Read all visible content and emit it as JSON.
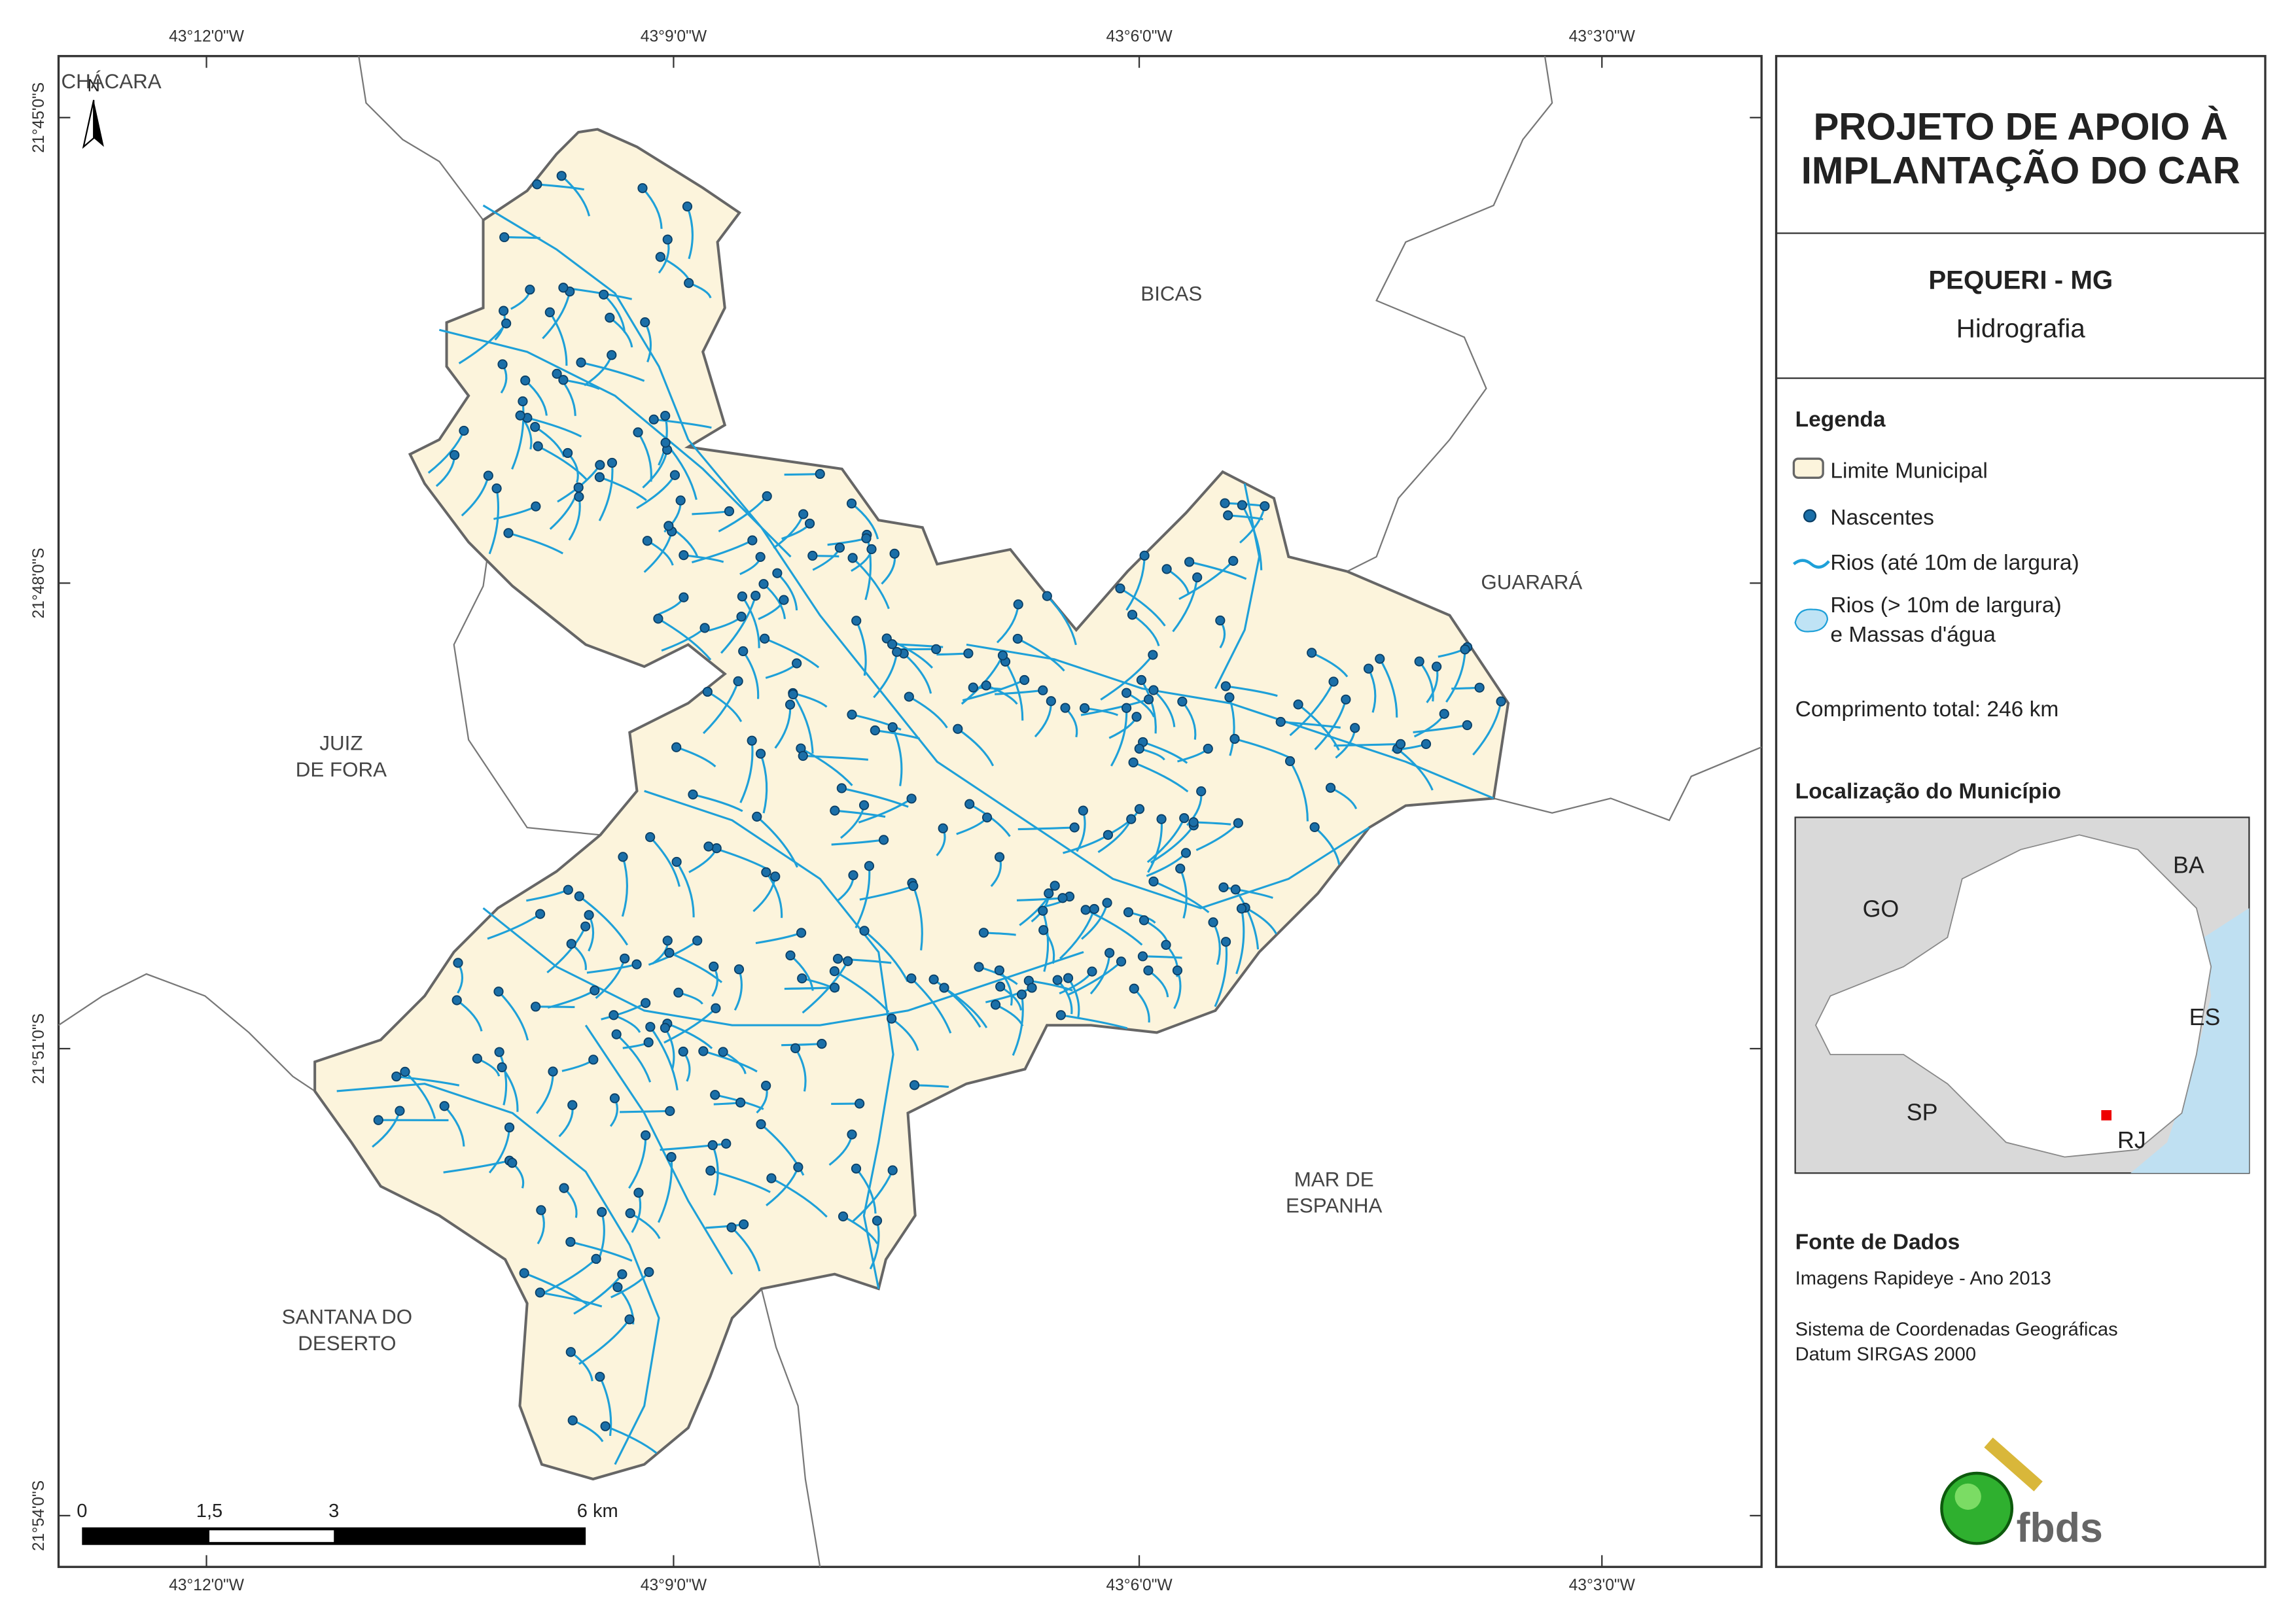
{
  "map": {
    "grid_labels": {
      "top": [
        "43°12'0\"W",
        "43°9'0\"W",
        "43°6'0\"W",
        "43°3'0\"W"
      ],
      "bottom": [
        "43°12'0\"W",
        "43°9'0\"W",
        "43°6'0\"W",
        "43°3'0\"W"
      ],
      "left": [
        "21°45'0\"S",
        "21°48'0\"S",
        "21°51'0\"S",
        "21°54'0\"S"
      ]
    },
    "north": "N",
    "places": [
      {
        "lines": [
          "CHÁCARA"
        ]
      },
      {
        "lines": [
          "BICAS"
        ]
      },
      {
        "lines": [
          "GUARARÁ"
        ]
      },
      {
        "lines": [
          "JUIZ",
          "DE FORA"
        ]
      },
      {
        "lines": [
          "MAR DE",
          "ESPANHA"
        ]
      },
      {
        "lines": [
          "SANTANA DO",
          "DESERTO"
        ]
      }
    ],
    "scale_labels": [
      "0",
      "1,5",
      "3",
      "6 km"
    ]
  },
  "panel": {
    "title": [
      "PROJETO DE APOIO À",
      "IMPLANTAÇÃO DO CAR"
    ],
    "municipality": "PEQUERI - MG",
    "theme": "Hidrografia",
    "legend_title": "Legenda",
    "legend": [
      "Limite Municipal",
      "Nascentes",
      "Rios (até 10m de largura)",
      [
        "Rios (> 10m de largura)",
        "e Massas d'água"
      ]
    ],
    "total_length": "Comprimento total:  246 km",
    "location_title": "Localização do Município",
    "inset_labels": [
      "BA",
      "GO",
      "ES",
      "SP",
      "RJ"
    ],
    "source_title": "Fonte de Dados",
    "source": [
      "Imagens Rapideye - Ano 2013",
      "Sistema de Coordenadas Geográficas",
      "Datum SIRGAS 2000"
    ],
    "logo": "fbds"
  }
}
